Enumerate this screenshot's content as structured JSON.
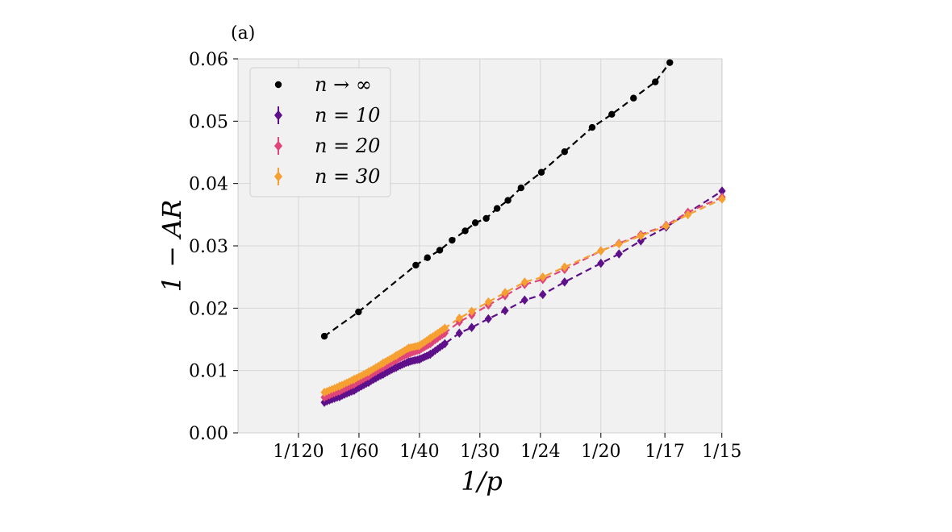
{
  "chart_data": {
    "type": "line",
    "panel_label": "(a)",
    "xlabel": "1/p",
    "ylabel": "1 − AR",
    "x_scale": "reciprocal",
    "xlim": [
      0,
      0.0667
    ],
    "ylim": [
      0,
      0.06
    ],
    "grid": true,
    "legend_placement": "top-left",
    "x_ticks": [
      {
        "value": 0.00833,
        "label": "1/120"
      },
      {
        "value": 0.01667,
        "label": "1/60"
      },
      {
        "value": 0.025,
        "label": "1/40"
      },
      {
        "value": 0.03333,
        "label": "1/30"
      },
      {
        "value": 0.04167,
        "label": "1/24"
      },
      {
        "value": 0.05,
        "label": "1/20"
      },
      {
        "value": 0.05882,
        "label": "1/17"
      },
      {
        "value": 0.06667,
        "label": "1/15"
      }
    ],
    "y_ticks": [
      {
        "value": 0.0,
        "label": "0.00"
      },
      {
        "value": 0.01,
        "label": "0.01"
      },
      {
        "value": 0.02,
        "label": "0.02"
      },
      {
        "value": 0.03,
        "label": "0.03"
      },
      {
        "value": 0.04,
        "label": "0.04"
      },
      {
        "value": 0.05,
        "label": "0.05"
      },
      {
        "value": 0.06,
        "label": "0.06"
      }
    ],
    "series": [
      {
        "name": "n → ∞",
        "color": "#000000",
        "marker": "circle",
        "line": "dashed",
        "x": [
          0.0119,
          0.0166,
          0.0245,
          0.0261,
          0.0278,
          0.0295,
          0.0313,
          0.0327,
          0.0342,
          0.0357,
          0.0372,
          0.039,
          0.0418,
          0.045,
          0.0488,
          0.0515,
          0.0545,
          0.0575,
          0.0595
        ],
        "y": [
          0.0155,
          0.0194,
          0.0269,
          0.0281,
          0.0293,
          0.0309,
          0.0324,
          0.0337,
          0.0344,
          0.036,
          0.0373,
          0.0393,
          0.0418,
          0.0451,
          0.049,
          0.0511,
          0.0537,
          0.0563,
          0.0594
        ]
      },
      {
        "name": "n = 10",
        "color": "#5e0f8a",
        "marker": "diamond",
        "line": "dashed",
        "x": [
          0.0119,
          0.014,
          0.016,
          0.018,
          0.02,
          0.0218,
          0.0235,
          0.025,
          0.0265,
          0.0285,
          0.0305,
          0.0322,
          0.0345,
          0.0368,
          0.0395,
          0.042,
          0.045,
          0.05,
          0.0525,
          0.0555,
          0.059,
          0.062,
          0.0667
        ],
        "y": [
          0.0049,
          0.0058,
          0.0068,
          0.0081,
          0.0094,
          0.0105,
          0.0114,
          0.0118,
          0.0126,
          0.0143,
          0.016,
          0.0169,
          0.0183,
          0.0196,
          0.0213,
          0.0222,
          0.0242,
          0.0272,
          0.0287,
          0.0308,
          0.033,
          0.0353,
          0.0388
        ]
      },
      {
        "name": "n = 20",
        "color": "#e0457a",
        "marker": "diamond",
        "line": "dashed",
        "x": [
          0.0119,
          0.014,
          0.016,
          0.018,
          0.02,
          0.0218,
          0.0235,
          0.025,
          0.0265,
          0.0285,
          0.0305,
          0.0322,
          0.0345,
          0.0368,
          0.0395,
          0.042,
          0.045,
          0.05,
          0.0525,
          0.0555,
          0.059,
          0.062,
          0.0667
        ],
        "y": [
          0.0057,
          0.0067,
          0.0078,
          0.0091,
          0.0105,
          0.0117,
          0.0127,
          0.0133,
          0.0143,
          0.016,
          0.0178,
          0.0189,
          0.0205,
          0.022,
          0.0238,
          0.0246,
          0.0262,
          0.0292,
          0.0304,
          0.0318,
          0.0333,
          0.0354,
          0.0378
        ]
      },
      {
        "name": "n = 30",
        "color": "#f5a030",
        "marker": "diamond",
        "line": "dashed",
        "x": [
          0.0119,
          0.014,
          0.016,
          0.018,
          0.02,
          0.0218,
          0.0235,
          0.025,
          0.0265,
          0.0285,
          0.0305,
          0.0322,
          0.0345,
          0.0368,
          0.0395,
          0.042,
          0.045,
          0.05,
          0.0525,
          0.0555,
          0.059,
          0.062,
          0.0667
        ],
        "y": [
          0.0065,
          0.0075,
          0.0086,
          0.0098,
          0.0112,
          0.0124,
          0.0136,
          0.014,
          0.0152,
          0.0168,
          0.0184,
          0.0195,
          0.021,
          0.0225,
          0.0242,
          0.025,
          0.0266,
          0.0292,
          0.0303,
          0.0316,
          0.0332,
          0.035,
          0.0375
        ]
      }
    ]
  }
}
